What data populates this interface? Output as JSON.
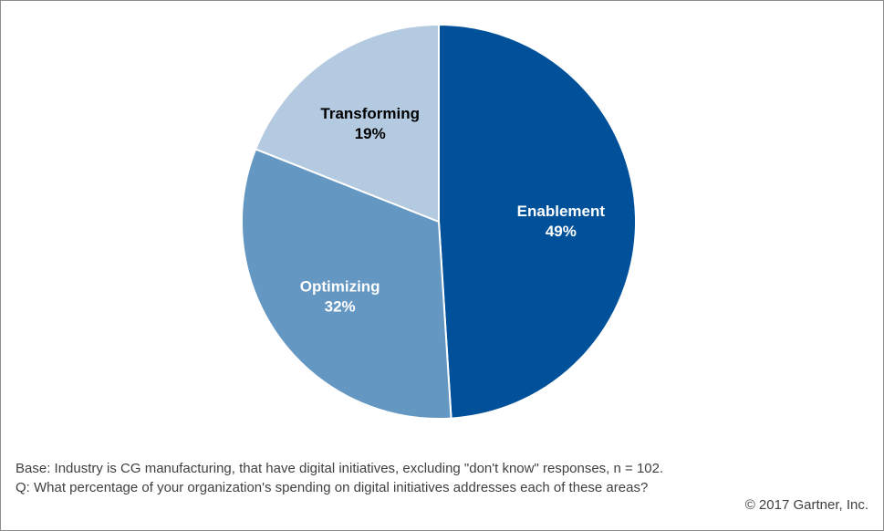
{
  "chart_data": {
    "type": "pie",
    "slices": [
      {
        "label": "Enablement",
        "value": 49,
        "value_label": "49%",
        "color": "#00519A",
        "label_color": "#ffffff"
      },
      {
        "label": "Optimizing",
        "value": 32,
        "value_label": "32%",
        "color": "#6597C3",
        "label_color": "#ffffff"
      },
      {
        "label": "Transforming",
        "value": 19,
        "value_label": "19%",
        "color": "#B3CAE1",
        "label_color": "#000000"
      }
    ],
    "start": "12 o'clock",
    "direction": "clockwise",
    "legend": "none"
  },
  "footnotes": {
    "base": "Base: Industry is CG manufacturing, that have digital initiatives, excluding \"don't know\" responses, n = 102.",
    "question": "Q: What percentage of your organization's spending on digital initiatives addresses each of these areas?"
  },
  "copyright": "© 2017 Gartner, Inc."
}
